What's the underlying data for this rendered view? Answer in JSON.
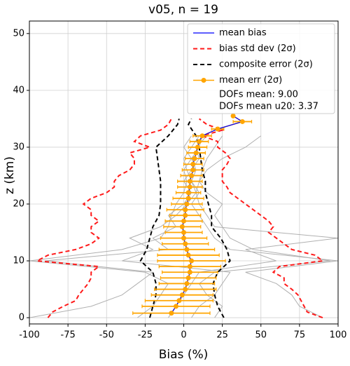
{
  "chart_data": {
    "type": "line",
    "title": "v05, n = 19",
    "xlabel": "Bias (%)",
    "ylabel": "z (km)",
    "xlim": [
      -100,
      100
    ],
    "xticks": [
      -100,
      -75,
      -50,
      -25,
      0,
      25,
      50,
      75,
      100
    ],
    "ylim": [
      -1.1,
      52.2
    ],
    "yticks": [
      0,
      10,
      20,
      30,
      40,
      50
    ],
    "grid": true,
    "legend": "upper right",
    "annotations": [
      "DOFs mean: 9.00",
      "DOFs mean u20: 3.37"
    ],
    "profiles": {
      "color": "#b0b0b0",
      "z": [
        0,
        2,
        4,
        6,
        8,
        10,
        12,
        14,
        16,
        18,
        20,
        22,
        24,
        26,
        28,
        30,
        32
      ],
      "lines": [
        [
          -100,
          -60,
          -40,
          -30,
          -20,
          -90,
          -10,
          -20,
          -5,
          -10,
          0,
          5,
          0,
          5,
          10,
          8,
          15
        ],
        [
          90,
          75,
          70,
          60,
          40,
          100,
          30,
          20,
          15,
          10,
          5,
          10,
          5,
          8,
          5,
          10,
          12
        ],
        [
          -30,
          -20,
          -15,
          -10,
          -25,
          -100,
          -40,
          -15,
          -10,
          -8,
          -5,
          0,
          2,
          0,
          5,
          0,
          5
        ],
        [
          20,
          25,
          15,
          10,
          20,
          95,
          45,
          30,
          25,
          20,
          25,
          15,
          10,
          12,
          15,
          20,
          25
        ],
        [
          -10,
          -5,
          0,
          5,
          10,
          60,
          40,
          100,
          20,
          15,
          10,
          8,
          10,
          15,
          25,
          40,
          50
        ],
        [
          5,
          10,
          20,
          25,
          30,
          -40,
          -20,
          -35,
          -15,
          -5,
          2,
          8,
          5,
          2,
          0,
          5,
          10
        ]
      ]
    },
    "std": {
      "name": "bias std dev (2σ)",
      "color": "#ff1a1a",
      "z": [
        0,
        1,
        2,
        3,
        4,
        5,
        6,
        7,
        8,
        9,
        10,
        11,
        12,
        13,
        14,
        15,
        16,
        17,
        18,
        19,
        20,
        21,
        22,
        23,
        24,
        25,
        26,
        27,
        28,
        29,
        30,
        31,
        32,
        33,
        34,
        35
      ],
      "lower": [
        -88,
        -85,
        -78,
        -70,
        -68,
        -65,
        -62,
        -60,
        -60,
        -55,
        -95,
        -88,
        -70,
        -60,
        -55,
        -60,
        -60,
        -55,
        -60,
        -60,
        -65,
        -60,
        -50,
        -45,
        -45,
        -42,
        -35,
        -32,
        -32,
        -35,
        -22,
        -32,
        -28,
        -15,
        -10,
        -8
      ],
      "upper": [
        90,
        80,
        78,
        76,
        74,
        70,
        65,
        65,
        58,
        62,
        90,
        85,
        70,
        65,
        60,
        55,
        58,
        55,
        50,
        45,
        40,
        35,
        30,
        28,
        25,
        25,
        25,
        28,
        30,
        27,
        22,
        22,
        12,
        25,
        15,
        10
      ]
    },
    "composite": {
      "name": "composite error (2σ)",
      "color": "#000000",
      "z": [
        0,
        2,
        4,
        6,
        8,
        10,
        12,
        14,
        16,
        18,
        20,
        22,
        24,
        26,
        28,
        30,
        32,
        34,
        35
      ],
      "lower": [
        -22,
        -20,
        -18,
        -18,
        -20,
        -28,
        -24,
        -22,
        -20,
        -16,
        -15,
        -15,
        -15,
        -16,
        -17,
        -18,
        -10,
        -4,
        -3
      ],
      "upper": [
        26,
        22,
        20,
        19,
        22,
        30,
        28,
        24,
        18,
        18,
        16,
        14,
        14,
        12,
        11,
        10,
        8,
        3,
        5
      ]
    },
    "z": [
      0.8,
      2,
      3,
      4,
      5,
      6,
      7,
      8,
      9,
      10,
      11,
      12,
      13,
      14,
      15,
      16,
      17,
      18,
      19,
      20,
      21,
      22,
      23,
      24,
      25,
      26,
      27,
      28,
      29,
      30,
      31,
      32,
      33.2,
      34.5,
      35.5
    ],
    "series": [
      {
        "name": "mean bias",
        "color": "#0000ff",
        "values": [
          -8,
          -5,
          -3,
          -1,
          1,
          2,
          3,
          4,
          4,
          5,
          3,
          2,
          1,
          0,
          0,
          -1,
          0,
          1,
          1,
          2,
          3,
          3,
          4,
          4,
          5,
          6,
          6,
          7,
          8,
          9,
          10,
          12,
          22,
          38,
          32
        ]
      },
      {
        "name": "mean err (2σ)",
        "color": "#ffa500",
        "values": [
          -8,
          -5,
          -3,
          -1,
          1,
          2,
          3,
          4,
          4,
          5,
          3,
          2,
          1,
          0,
          0,
          -1,
          0,
          1,
          1,
          2,
          3,
          3,
          4,
          4,
          5,
          6,
          6,
          7,
          8,
          9,
          10,
          12,
          22,
          38,
          32
        ],
        "errors": [
          25,
          22,
          22,
          20,
          20,
          18,
          18,
          18,
          20,
          22,
          20,
          18,
          15,
          15,
          12,
          12,
          12,
          10,
          12,
          10,
          10,
          8,
          8,
          8,
          7,
          7,
          6,
          6,
          6,
          6,
          6,
          6,
          4,
          6,
          0
        ]
      }
    ]
  }
}
